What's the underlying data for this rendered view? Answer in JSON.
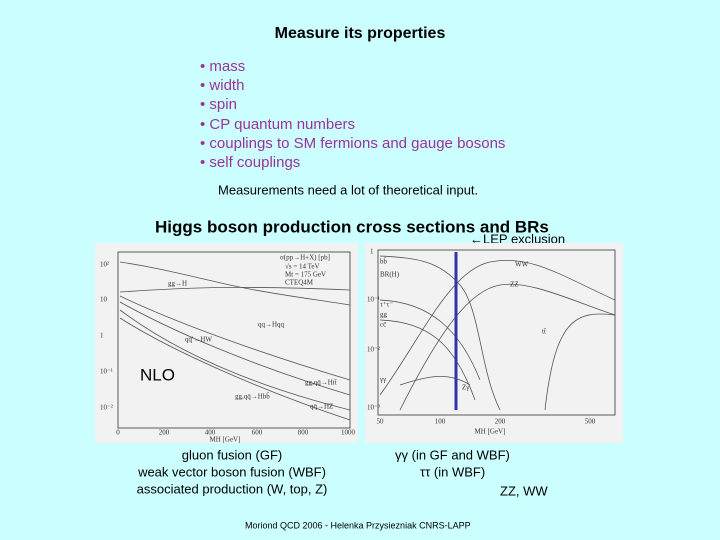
{
  "header": {
    "title": "Measure its properties"
  },
  "bullets": [
    "• mass",
    "• width",
    "• spin",
    "• CP quantum numbers",
    "• couplings to SM fermions and gauge bosons",
    "• self couplings"
  ],
  "note": "Measurements need a lot of theoretical input.",
  "section_title": "Higgs boson production cross sections and BRs",
  "lep_label": "←LEP exclusion",
  "left_plot": {
    "labels": [
      "σ(pp→H+X) [pb]",
      "√s = 14 TeV",
      "Mt = 175 GeV",
      "CTEQ4M",
      "gg→H",
      "qq→Hqq",
      "qq̄'→HW",
      "gg,qq̄→Htt̄",
      "gg,qq̄→Hbb̄",
      "qq̄→HZ",
      "NLO"
    ],
    "yticks": [
      "10²",
      "10",
      "1",
      "10⁻¹",
      "10⁻²"
    ],
    "xticks": [
      "0",
      "200",
      "400",
      "600",
      "800",
      "1000"
    ],
    "xlabel": "MH [GeV]"
  },
  "right_plot": {
    "labels": [
      "bb̄",
      "BR(H)",
      "τ⁺τ⁻",
      "cc̄",
      "gg",
      "γγ",
      "Zγ",
      "WW",
      "ZZ",
      "tt̄"
    ],
    "yticks": [
      "1",
      "10⁻¹",
      "10⁻²",
      "10⁻³"
    ],
    "xticks": [
      "50",
      "100",
      "200",
      "500"
    ],
    "xlabel": "MH [GeV]"
  },
  "captions_left": [
    "gluon fusion (GF)",
    "weak vector boson fusion (WBF)",
    "associated production (W, top, Z)"
  ],
  "captions_right": [
    "γγ (in GF and WBF)",
    "ττ (in WBF)",
    "ZZ, WW"
  ],
  "footer": "Moriond QCD 2006 - Helenka Przysiezniak CNRS-LAPP"
}
